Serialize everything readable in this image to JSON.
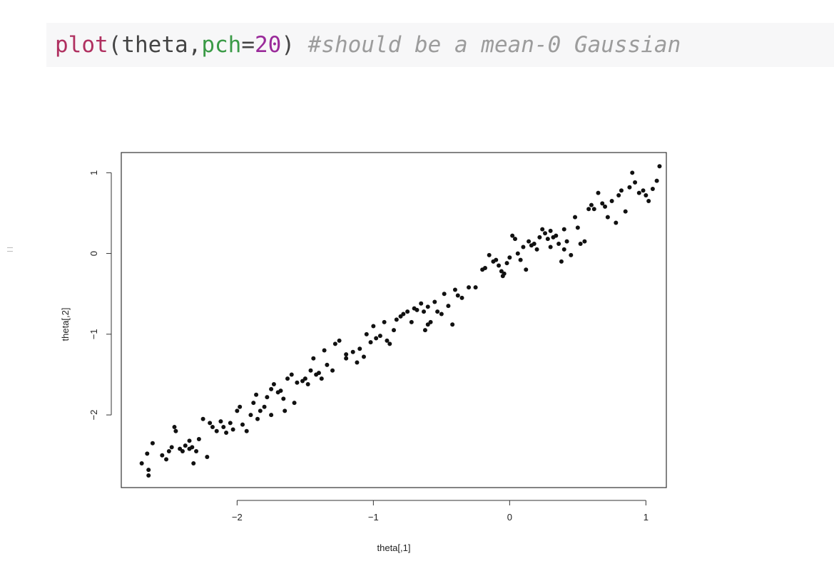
{
  "code": {
    "func": "plot",
    "arg1": "theta",
    "param": "pch",
    "param_value": "20",
    "comment": "#should be a mean-0 Gaussian"
  },
  "chart_data": {
    "type": "scatter",
    "title": "",
    "xlabel": "theta[,1]",
    "ylabel": "theta[,2]",
    "xlim": [
      -2.85,
      1.15
    ],
    "ylim": [
      -2.9,
      1.25
    ],
    "xticks": [
      -2,
      -1,
      0,
      1
    ],
    "yticks": [
      -2,
      -1,
      0,
      1
    ],
    "xtick_labels": [
      "−2",
      "−1",
      "0",
      "1"
    ],
    "ytick_labels": [
      "−2",
      "−1",
      "0",
      "1"
    ],
    "grid": false,
    "point_color": "#111111",
    "points": [
      [
        -2.7,
        -2.6
      ],
      [
        -2.65,
        -2.75
      ],
      [
        -2.65,
        -2.68
      ],
      [
        -2.62,
        -2.35
      ],
      [
        -2.66,
        -2.48
      ],
      [
        -2.55,
        -2.5
      ],
      [
        -2.52,
        -2.55
      ],
      [
        -2.5,
        -2.45
      ],
      [
        -2.48,
        -2.4
      ],
      [
        -2.46,
        -2.15
      ],
      [
        -2.45,
        -2.2
      ],
      [
        -2.42,
        -2.42
      ],
      [
        -2.4,
        -2.45
      ],
      [
        -2.38,
        -2.38
      ],
      [
        -2.35,
        -2.32
      ],
      [
        -2.33,
        -2.4
      ],
      [
        -2.32,
        -2.6
      ],
      [
        -2.3,
        -2.45
      ],
      [
        -2.28,
        -2.3
      ],
      [
        -2.25,
        -2.05
      ],
      [
        -2.22,
        -2.52
      ],
      [
        -2.2,
        -2.1
      ],
      [
        -2.18,
        -2.15
      ],
      [
        -2.15,
        -2.2
      ],
      [
        -2.12,
        -2.08
      ],
      [
        -2.1,
        -2.15
      ],
      [
        -2.08,
        -2.22
      ],
      [
        -2.05,
        -2.1
      ],
      [
        -2.03,
        -2.18
      ],
      [
        -2.0,
        -1.95
      ],
      [
        -1.98,
        -1.9
      ],
      [
        -1.96,
        -2.12
      ],
      [
        -1.93,
        -2.2
      ],
      [
        -1.9,
        -2.0
      ],
      [
        -1.88,
        -1.85
      ],
      [
        -1.86,
        -1.75
      ],
      [
        -1.85,
        -2.05
      ],
      [
        -1.83,
        -1.95
      ],
      [
        -1.8,
        -1.9
      ],
      [
        -1.78,
        -1.78
      ],
      [
        -1.75,
        -2.0
      ],
      [
        -1.73,
        -1.62
      ],
      [
        -1.7,
        -1.72
      ],
      [
        -1.68,
        -1.7
      ],
      [
        -1.66,
        -1.8
      ],
      [
        -1.65,
        -1.95
      ],
      [
        -1.63,
        -1.55
      ],
      [
        -1.6,
        -1.5
      ],
      [
        -1.58,
        -1.85
      ],
      [
        -1.56,
        -1.6
      ],
      [
        -1.52,
        -1.58
      ],
      [
        -1.5,
        -1.55
      ],
      [
        -1.48,
        -1.62
      ],
      [
        -1.46,
        -1.45
      ],
      [
        -1.44,
        -1.3
      ],
      [
        -1.42,
        -1.5
      ],
      [
        -1.4,
        -1.48
      ],
      [
        -1.38,
        -1.55
      ],
      [
        -1.36,
        -1.2
      ],
      [
        -1.34,
        -1.38
      ],
      [
        -1.3,
        -1.45
      ],
      [
        -1.28,
        -1.12
      ],
      [
        -1.25,
        -1.08
      ],
      [
        -1.2,
        -1.25
      ],
      [
        -1.15,
        -1.22
      ],
      [
        -1.12,
        -1.35
      ],
      [
        -1.1,
        -1.18
      ],
      [
        -1.07,
        -1.28
      ],
      [
        -1.05,
        -1.0
      ],
      [
        -1.02,
        -1.1
      ],
      [
        -1.0,
        -0.9
      ],
      [
        -0.98,
        -1.05
      ],
      [
        -0.95,
        -1.02
      ],
      [
        -0.92,
        -0.85
      ],
      [
        -0.9,
        -1.08
      ],
      [
        -0.88,
        -1.12
      ],
      [
        -0.85,
        -0.95
      ],
      [
        -0.83,
        -0.82
      ],
      [
        -0.8,
        -0.78
      ],
      [
        -0.78,
        -0.75
      ],
      [
        -0.75,
        -0.72
      ],
      [
        -0.72,
        -0.85
      ],
      [
        -0.7,
        -0.68
      ],
      [
        -0.68,
        -0.7
      ],
      [
        -0.65,
        -0.62
      ],
      [
        -0.63,
        -0.72
      ],
      [
        -0.62,
        -0.95
      ],
      [
        -0.6,
        -0.66
      ],
      [
        -0.58,
        -0.85
      ],
      [
        -0.55,
        -0.6
      ],
      [
        -0.53,
        -0.72
      ],
      [
        -0.5,
        -0.75
      ],
      [
        -0.48,
        -0.5
      ],
      [
        -0.45,
        -0.65
      ],
      [
        -0.42,
        -0.88
      ],
      [
        -0.4,
        -0.45
      ],
      [
        -0.38,
        -0.52
      ],
      [
        -0.35,
        -0.55
      ],
      [
        -0.3,
        -0.42
      ],
      [
        -0.25,
        -0.42
      ],
      [
        -0.2,
        -0.2
      ],
      [
        -0.18,
        -0.18
      ],
      [
        -0.15,
        -0.02
      ],
      [
        -0.12,
        -0.1
      ],
      [
        -0.1,
        -0.08
      ],
      [
        -0.08,
        -0.15
      ],
      [
        -0.06,
        -0.22
      ],
      [
        -0.04,
        -0.25
      ],
      [
        -0.02,
        -0.12
      ],
      [
        0.0,
        -0.05
      ],
      [
        0.02,
        0.22
      ],
      [
        0.04,
        0.18
      ],
      [
        0.06,
        0.0
      ],
      [
        0.08,
        -0.08
      ],
      [
        0.1,
        0.08
      ],
      [
        0.12,
        -0.2
      ],
      [
        0.14,
        0.15
      ],
      [
        0.16,
        0.1
      ],
      [
        0.18,
        0.12
      ],
      [
        0.2,
        0.05
      ],
      [
        0.22,
        0.2
      ],
      [
        0.24,
        0.3
      ],
      [
        0.26,
        0.25
      ],
      [
        0.28,
        0.18
      ],
      [
        0.3,
        0.28
      ],
      [
        0.32,
        0.2
      ],
      [
        0.34,
        0.22
      ],
      [
        0.36,
        0.12
      ],
      [
        0.38,
        -0.1
      ],
      [
        0.4,
        0.05
      ],
      [
        0.42,
        0.15
      ],
      [
        0.45,
        -0.02
      ],
      [
        0.48,
        0.45
      ],
      [
        0.5,
        0.32
      ],
      [
        0.52,
        0.12
      ],
      [
        0.55,
        0.15
      ],
      [
        0.58,
        0.55
      ],
      [
        0.6,
        0.6
      ],
      [
        0.62,
        0.55
      ],
      [
        0.65,
        0.75
      ],
      [
        0.68,
        0.62
      ],
      [
        0.7,
        0.58
      ],
      [
        0.72,
        0.45
      ],
      [
        0.75,
        0.65
      ],
      [
        0.78,
        0.38
      ],
      [
        0.8,
        0.72
      ],
      [
        0.82,
        0.78
      ],
      [
        0.85,
        0.52
      ],
      [
        0.88,
        0.82
      ],
      [
        0.9,
        1.0
      ],
      [
        0.92,
        0.88
      ],
      [
        0.95,
        0.75
      ],
      [
        0.98,
        0.78
      ],
      [
        1.0,
        0.72
      ],
      [
        1.02,
        0.65
      ],
      [
        1.05,
        0.8
      ],
      [
        1.08,
        0.9
      ],
      [
        1.1,
        1.08
      ],
      [
        0.3,
        0.08
      ],
      [
        -0.05,
        -0.28
      ],
      [
        0.4,
        0.3
      ],
      [
        -0.6,
        -0.88
      ],
      [
        -1.2,
        -1.3
      ],
      [
        -1.75,
        -1.68
      ],
      [
        -2.35,
        -2.42
      ]
    ]
  }
}
